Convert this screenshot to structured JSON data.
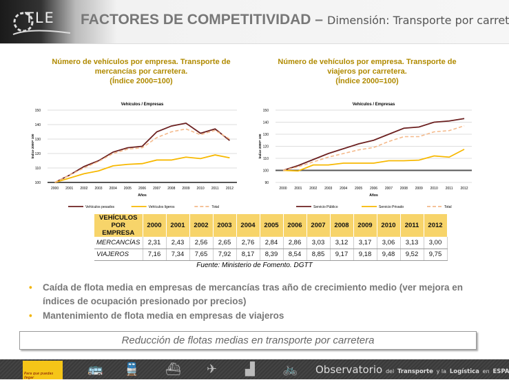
{
  "header": {
    "logo": "TLE",
    "title_bold": "FACTORES DE COMPETITIVIDAD –",
    "title_rest": "Dimensión: Transporte por carretera"
  },
  "charts_titles": [
    [
      "Número de vehículos por empresa. Transporte de",
      "mercancías por carretera.",
      "(Índice 2000=100)"
    ],
    [
      "Número de vehículos por empresa. Transporte de",
      "viajeros por carretera.",
      "(Índice 2000=100)"
    ]
  ],
  "chart_data": [
    {
      "type": "line",
      "title": "Vehículos / Empresas",
      "xlabel": "Años",
      "ylabel": "Índice 2000= 100",
      "ylim": [
        100,
        150
      ],
      "yticks": [
        100,
        110,
        120,
        130,
        140,
        150
      ],
      "grid": true,
      "legend": "bottom",
      "categories": [
        "2000",
        "2001",
        "2002",
        "2003",
        "2004",
        "2005",
        "2006",
        "2007",
        "2008",
        "2009",
        "2010",
        "2011",
        "2012"
      ],
      "series": [
        {
          "name": "Vehículos pesados",
          "color": "#6b1f1f",
          "dash": false,
          "values": [
            100,
            105,
            111,
            115,
            121,
            124,
            125,
            135,
            139,
            141,
            134,
            137,
            129
          ]
        },
        {
          "name": "Vehículos ligeros",
          "color": "#f7b800",
          "dash": false,
          "values": [
            100,
            103,
            106,
            108,
            111.5,
            112.5,
            113,
            115.5,
            115.5,
            117.5,
            116.5,
            119,
            117
          ]
        },
        {
          "name": "Total",
          "color": "#f4b98a",
          "dash": true,
          "values": [
            100,
            105,
            110,
            114.5,
            120,
            123,
            124,
            131,
            135,
            137,
            133,
            136,
            130
          ]
        }
      ]
    },
    {
      "type": "line",
      "title": "Vehículos / Empresas",
      "xlabel": "Años",
      "ylabel": "Índice 2000= 100",
      "ylim": [
        90,
        150
      ],
      "yticks": [
        90,
        100,
        110,
        120,
        130,
        140,
        150
      ],
      "grid": true,
      "legend": "bottom",
      "categories": [
        "2000",
        "2001",
        "2002",
        "2003",
        "2004",
        "2005",
        "2006",
        "2007",
        "2008",
        "2009",
        "2010",
        "2011",
        "2012"
      ],
      "series": [
        {
          "name": "Servicio Público",
          "color": "#6b1f1f",
          "dash": false,
          "values": [
            100,
            104,
            109,
            114,
            118,
            122,
            125,
            130,
            135,
            136,
            140,
            141,
            143
          ]
        },
        {
          "name": "Servicio Privado",
          "color": "#f7b800",
          "dash": false,
          "values": [
            100,
            99.5,
            104.5,
            104.5,
            106,
            106,
            106,
            108,
            108,
            108.5,
            112,
            111,
            117.5
          ]
        },
        {
          "name": "Total",
          "color": "#f4b98a",
          "dash": true,
          "values": [
            100,
            103,
            107,
            111,
            114,
            117,
            119,
            124,
            128,
            128,
            132,
            133,
            137
          ]
        }
      ]
    }
  ],
  "table": {
    "header_line1": "VEHÍCULOS",
    "header_line2": "POR EMPRESA",
    "years": [
      "2000",
      "2001",
      "2002",
      "2003",
      "2004",
      "2005",
      "2006",
      "2007",
      "2008",
      "2009",
      "2010",
      "2011",
      "2012"
    ],
    "rows": [
      {
        "label": "MERCANCÍAS",
        "values": [
          "2,31",
          "2,43",
          "2,56",
          "2,65",
          "2,76",
          "2,84",
          "2,86",
          "3,03",
          "3,12",
          "3,17",
          "3,06",
          "3,13",
          "3,00"
        ]
      },
      {
        "label": "VIAJEROS",
        "values": [
          "7,16",
          "7,34",
          "7,65",
          "7,92",
          "8,17",
          "8,39",
          "8,54",
          "8,85",
          "9,17",
          "9,18",
          "9,48",
          "9,52",
          "9,75"
        ]
      }
    ]
  },
  "source": "Fuente: Ministerio de Fomento. DGTT",
  "bullets": [
    "Caída de flota media en empresas de mercancías tras año de crecimiento medio (ver mejora en índices de ocupación presionado por precios)",
    "Mantenimiento de flota media en empresas de viajeros"
  ],
  "conclusion": "Reducción de flotas medias en transporte por carretera",
  "footer": {
    "gov_text": "Para que puedas llegar",
    "obs_big": "Observatorio",
    "obs_1": "del",
    "obs_2": "Transporte",
    "obs_3": "y la",
    "obs_4": "Logística",
    "obs_5": "en",
    "obs_6": "ESPAÑA",
    "icons": [
      "bus-icon",
      "train-icon",
      "ship-icon",
      "plane-icon",
      "forklift-icon",
      "bicycle-icon"
    ]
  }
}
